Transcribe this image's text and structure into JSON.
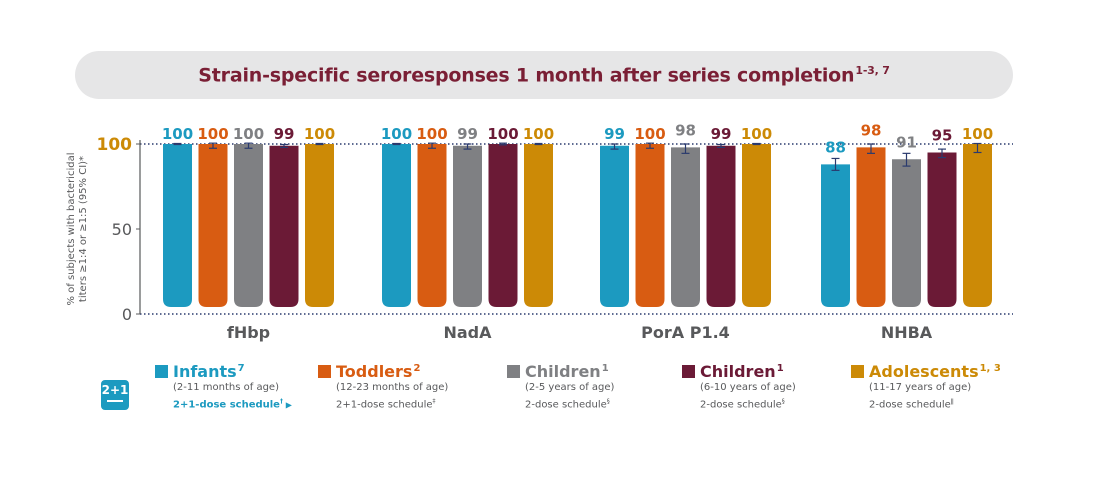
{
  "title": {
    "text": "Strain-specific seroresponses 1 month after series completion",
    "sup": "1-3, 7"
  },
  "chart_data": {
    "type": "bar",
    "ylabel": "% of subjects with bactericidal titers ≥1:4 or ≥1:5 (95% CI)*",
    "ylim": [
      0,
      100
    ],
    "yticks": [
      "0",
      "50",
      "100"
    ],
    "categories": [
      "fHbp",
      "NadA",
      "PorA P1.4",
      "NHBA"
    ],
    "series": [
      {
        "name": "Infants",
        "color": "#1c9ac0",
        "values": [
          100,
          100,
          99,
          88
        ],
        "err_low": [
          0.3,
          0.3,
          2,
          3.5
        ],
        "err_high": [
          0.3,
          0.3,
          1,
          3.5
        ]
      },
      {
        "name": "Toddlers",
        "color": "#d85c12",
        "values": [
          100,
          100,
          100,
          98
        ],
        "err_low": [
          2.5,
          2.5,
          2.5,
          3.5
        ],
        "err_high": [
          0.5,
          0.5,
          0.5,
          2
        ]
      },
      {
        "name": "Children",
        "color": "#7f8083",
        "values": [
          100,
          99,
          98,
          91
        ],
        "err_low": [
          2.5,
          2,
          3.5,
          4
        ],
        "err_high": [
          0.5,
          1,
          2,
          3.5
        ]
      },
      {
        "name": "Children",
        "color": "#6b1a36",
        "values": [
          99,
          100,
          99,
          95
        ],
        "err_low": [
          1,
          0.5,
          1,
          3
        ],
        "err_high": [
          0.7,
          0.5,
          0.7,
          2
        ]
      },
      {
        "name": "Adolescents",
        "color": "#cc8a06",
        "values": [
          100,
          100,
          100,
          100
        ],
        "err_low": [
          0.3,
          0.3,
          0.3,
          5
        ],
        "err_high": [
          0.3,
          0.3,
          0.3,
          0.3
        ]
      }
    ],
    "data_labels": [
      [
        "100",
        "100",
        "100",
        "99",
        "100"
      ],
      [
        "100",
        "100",
        "99",
        "100",
        "100"
      ],
      [
        "99",
        "100",
        "98",
        "99",
        "100"
      ],
      [
        "88",
        "98",
        "91",
        "95",
        "100"
      ]
    ]
  },
  "legend": [
    {
      "label": "Infants",
      "sup": "7",
      "color": "#1c9ac0",
      "age": "(2-11 months of age)",
      "schedule": "2+1-dose schedule",
      "schedule_sup": "†",
      "schedule_link": true
    },
    {
      "label": "Toddlers",
      "sup": "2",
      "color": "#d85c12",
      "age": "(12-23 months of age)",
      "schedule": "2+1-dose schedule",
      "schedule_sup": "‡",
      "schedule_link": false
    },
    {
      "label": "Children",
      "sup": "1",
      "color": "#7f8083",
      "age": "(2-5 years of age)",
      "schedule": "2-dose schedule",
      "schedule_sup": "§",
      "schedule_link": false
    },
    {
      "label": "Children",
      "sup": "1",
      "color": "#6b1a36",
      "age": "(6-10 years of age)",
      "schedule": "2-dose schedule",
      "schedule_sup": "§",
      "schedule_link": false
    },
    {
      "label": "Adolescents",
      "sup": "1, 3",
      "color": "#cc8a06",
      "age": "(11-17 years of age)",
      "schedule": "2-dose schedule",
      "schedule_sup": "ǁ",
      "schedule_link": false
    }
  ],
  "badge": {
    "text": "2+1",
    "icon": "syringe-icon"
  },
  "colors": {
    "title": "#7a1f35",
    "hundred_tick": "#cc8a06",
    "axis": "#58595b",
    "grid_dots": "#2a3a6e"
  }
}
